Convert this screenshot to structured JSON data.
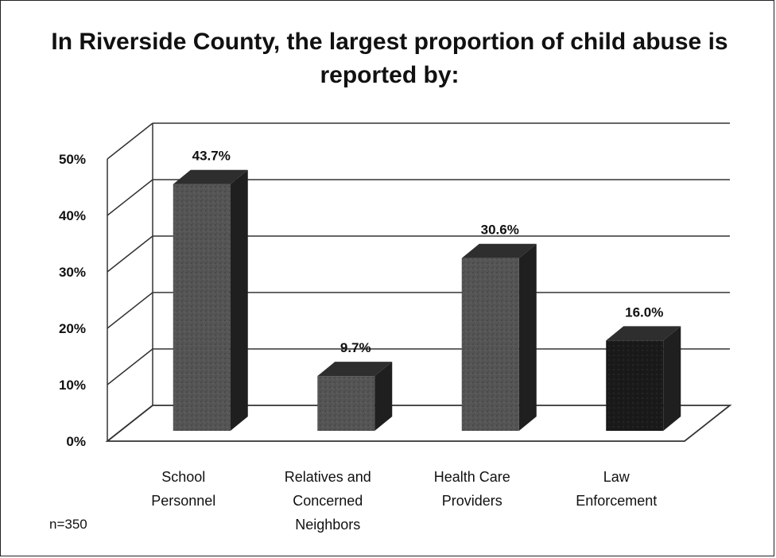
{
  "chart_data": {
    "type": "bar",
    "title": "In Riverside County, the largest proportion of child abuse is reported by:",
    "categories": [
      [
        "School",
        "Personnel"
      ],
      [
        "Relatives and",
        "Concerned",
        "Neighbors"
      ],
      [
        "Health Care",
        "Providers"
      ],
      [
        "Law",
        "Enforcement"
      ]
    ],
    "values": [
      43.7,
      9.7,
      30.6,
      16.0
    ],
    "value_labels": [
      "43.7%",
      "9.7%",
      "30.6%",
      "16.0%"
    ],
    "yticks": [
      "0%",
      "10%",
      "20%",
      "30%",
      "40%",
      "50%"
    ],
    "ylim": [
      0,
      50
    ],
    "grid": true,
    "style": "3d-column",
    "colors": {
      "bar_face": "#555555",
      "bar_top": "#2e2e2e",
      "bar_side": "#1f1f1f",
      "last_bar_face": "#1a1a1a"
    }
  },
  "note": "n=350"
}
